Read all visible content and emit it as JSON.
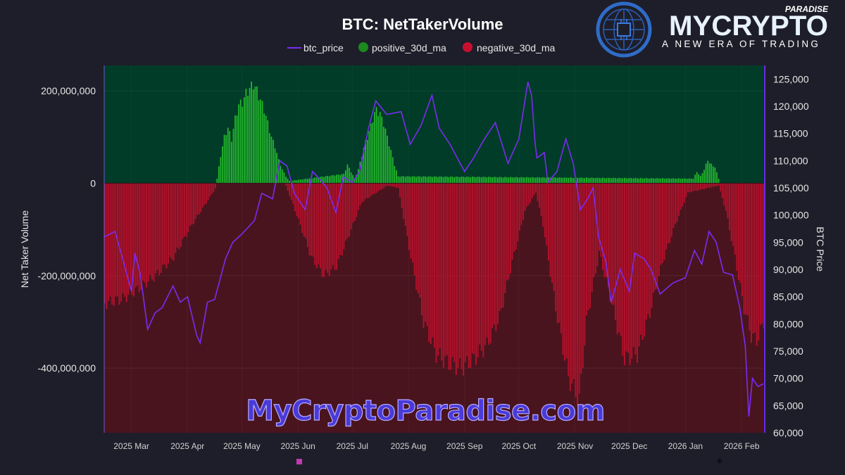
{
  "brand": {
    "name": "MYCRYPTO",
    "sub": "PARADISE",
    "tagline": "A NEW ERA OF TRADING",
    "watermark": "MyCryptoParadise.com"
  },
  "colors": {
    "price": "#7a2cf0",
    "positive": "#2bd42b",
    "negative": "#c8102e",
    "positive_region": "#003c28",
    "negative_region": "#4a141e"
  },
  "chart_data": {
    "type": "bar",
    "title": "BTC: NetTakerVolume",
    "ylabel": "Net Taker Volume",
    "y2label": "BTC Price",
    "legend": [
      "btc_price",
      "positive_30d_ma",
      "negative_30d_ma"
    ],
    "legend_position": "top-center",
    "ylim": [
      -540000000,
      255000000
    ],
    "y2lim": [
      60000,
      127500
    ],
    "yticks": [
      200000000,
      0,
      -200000000,
      -400000000
    ],
    "ytick_labels": [
      "200,000,000",
      "0",
      "-200,000,000",
      "-400,000,000"
    ],
    "y2ticks": [
      125000,
      120000,
      115000,
      110000,
      105000,
      100000,
      95000,
      90000,
      85000,
      80000,
      75000,
      70000,
      65000,
      60000
    ],
    "y2tick_labels": [
      "125,000",
      "120,000",
      "115,000",
      "110,000",
      "105,000",
      "100,000",
      "95,000",
      "90,000",
      "85,000",
      "80,000",
      "75,000",
      "70,000",
      "65,000",
      "60,000"
    ],
    "x_range": [
      "2025-02-14",
      "2026-02-13"
    ],
    "xtick_labels": [
      "2025 Mar",
      "2025 Apr",
      "2025 May",
      "2025 Jun",
      "2025 Jul",
      "2025 Aug",
      "2025 Sep",
      "2025 Oct",
      "2025 Nov",
      "2025 Dec",
      "2026 Jan",
      "2026 Feb"
    ],
    "xtick_dates": [
      "2025-03-01",
      "2025-04-01",
      "2025-05-01",
      "2025-06-01",
      "2025-07-01",
      "2025-08-01",
      "2025-09-01",
      "2025-10-01",
      "2025-11-01",
      "2025-12-01",
      "2026-01-01",
      "2026-02-01"
    ],
    "series": [
      {
        "name": "btc_price",
        "type": "line",
        "axis": "right",
        "points": [
          [
            "2025-02-14",
            96000
          ],
          [
            "2025-02-20",
            97000
          ],
          [
            "2025-02-25",
            91000
          ],
          [
            "2025-03-01",
            86000
          ],
          [
            "2025-03-03",
            93000
          ],
          [
            "2025-03-06",
            89000
          ],
          [
            "2025-03-10",
            79000
          ],
          [
            "2025-03-14",
            82000
          ],
          [
            "2025-03-18",
            83000
          ],
          [
            "2025-03-24",
            87000
          ],
          [
            "2025-03-28",
            84000
          ],
          [
            "2025-04-01",
            85000
          ],
          [
            "2025-04-06",
            78000
          ],
          [
            "2025-04-08",
            76500
          ],
          [
            "2025-04-12",
            84000
          ],
          [
            "2025-04-16",
            84500
          ],
          [
            "2025-04-22",
            92000
          ],
          [
            "2025-04-26",
            95000
          ],
          [
            "2025-05-01",
            96500
          ],
          [
            "2025-05-08",
            99000
          ],
          [
            "2025-05-12",
            104000
          ],
          [
            "2025-05-18",
            103000
          ],
          [
            "2025-05-22",
            110000
          ],
          [
            "2025-05-26",
            109000
          ],
          [
            "2025-05-30",
            104000
          ],
          [
            "2025-06-05",
            101000
          ],
          [
            "2025-06-09",
            108000
          ],
          [
            "2025-06-12",
            107000
          ],
          [
            "2025-06-17",
            105000
          ],
          [
            "2025-06-22",
            100500
          ],
          [
            "2025-06-26",
            107000
          ],
          [
            "2025-07-01",
            106000
          ],
          [
            "2025-07-05",
            108000
          ],
          [
            "2025-07-10",
            116000
          ],
          [
            "2025-07-14",
            121000
          ],
          [
            "2025-07-20",
            118500
          ],
          [
            "2025-07-28",
            119000
          ],
          [
            "2025-08-02",
            113000
          ],
          [
            "2025-08-08",
            116500
          ],
          [
            "2025-08-14",
            122000
          ],
          [
            "2025-08-18",
            116000
          ],
          [
            "2025-08-24",
            113000
          ],
          [
            "2025-09-01",
            108000
          ],
          [
            "2025-09-06",
            110500
          ],
          [
            "2025-09-12",
            114000
          ],
          [
            "2025-09-18",
            117000
          ],
          [
            "2025-09-25",
            109500
          ],
          [
            "2025-10-01",
            114000
          ],
          [
            "2025-10-06",
            124500
          ],
          [
            "2025-10-08",
            122000
          ],
          [
            "2025-10-10",
            113000
          ],
          [
            "2025-10-11",
            110500
          ],
          [
            "2025-10-15",
            111500
          ],
          [
            "2025-10-17",
            106000
          ],
          [
            "2025-10-22",
            108000
          ],
          [
            "2025-10-27",
            114000
          ],
          [
            "2025-10-31",
            109500
          ],
          [
            "2025-11-04",
            101000
          ],
          [
            "2025-11-08",
            103000
          ],
          [
            "2025-11-11",
            105000
          ],
          [
            "2025-11-14",
            96000
          ],
          [
            "2025-11-18",
            91500
          ],
          [
            "2025-11-21",
            84000
          ],
          [
            "2025-11-26",
            90000
          ],
          [
            "2025-12-01",
            86000
          ],
          [
            "2025-12-04",
            93000
          ],
          [
            "2025-12-09",
            92000
          ],
          [
            "2025-12-13",
            90000
          ],
          [
            "2025-12-18",
            85500
          ],
          [
            "2025-12-25",
            87500
          ],
          [
            "2026-01-01",
            88500
          ],
          [
            "2026-01-06",
            93500
          ],
          [
            "2026-01-10",
            91000
          ],
          [
            "2026-01-14",
            97000
          ],
          [
            "2026-01-18",
            95000
          ],
          [
            "2026-01-22",
            89500
          ],
          [
            "2026-01-27",
            89000
          ],
          [
            "2026-01-31",
            83000
          ],
          [
            "2026-02-03",
            76000
          ],
          [
            "2026-02-05",
            63000
          ],
          [
            "2026-02-07",
            70000
          ],
          [
            "2026-02-10",
            68500
          ],
          [
            "2026-02-13",
            69000
          ]
        ]
      },
      {
        "name": "positive_30d_ma",
        "type": "bar",
        "axis": "left",
        "points": [
          [
            "2025-04-17",
            10000000
          ],
          [
            "2025-04-19",
            60000000
          ],
          [
            "2025-04-21",
            100000000
          ],
          [
            "2025-04-23",
            120000000
          ],
          [
            "2025-04-25",
            95000000
          ],
          [
            "2025-04-27",
            140000000
          ],
          [
            "2025-04-29",
            170000000
          ],
          [
            "2025-05-01",
            175000000
          ],
          [
            "2025-05-03",
            195000000
          ],
          [
            "2025-05-05",
            205000000
          ],
          [
            "2025-05-07",
            215000000
          ],
          [
            "2025-05-09",
            200000000
          ],
          [
            "2025-05-11",
            180000000
          ],
          [
            "2025-05-13",
            160000000
          ],
          [
            "2025-05-15",
            130000000
          ],
          [
            "2025-05-17",
            100000000
          ],
          [
            "2025-05-19",
            80000000
          ],
          [
            "2025-05-21",
            50000000
          ],
          [
            "2025-05-23",
            30000000
          ],
          [
            "2025-05-25",
            15000000
          ],
          [
            "2025-05-27",
            5000000
          ],
          [
            "2025-06-26",
            20000000
          ],
          [
            "2025-06-28",
            40000000
          ],
          [
            "2025-06-30",
            25000000
          ],
          [
            "2025-07-02",
            10000000
          ],
          [
            "2025-07-04",
            30000000
          ],
          [
            "2025-07-06",
            60000000
          ],
          [
            "2025-07-08",
            90000000
          ],
          [
            "2025-07-10",
            110000000
          ],
          [
            "2025-07-12",
            140000000
          ],
          [
            "2025-07-14",
            160000000
          ],
          [
            "2025-07-16",
            150000000
          ],
          [
            "2025-07-18",
            130000000
          ],
          [
            "2025-07-20",
            100000000
          ],
          [
            "2025-07-22",
            70000000
          ],
          [
            "2025-07-24",
            40000000
          ],
          [
            "2025-07-26",
            15000000
          ],
          [
            "2026-01-05",
            10000000
          ],
          [
            "2026-01-07",
            25000000
          ],
          [
            "2026-01-09",
            15000000
          ],
          [
            "2026-01-11",
            30000000
          ],
          [
            "2026-01-13",
            50000000
          ],
          [
            "2026-01-15",
            40000000
          ],
          [
            "2026-01-17",
            35000000
          ],
          [
            "2026-01-19",
            10000000
          ]
        ]
      },
      {
        "name": "negative_30d_ma",
        "type": "bar",
        "axis": "left",
        "points": [
          [
            "2025-02-14",
            -260000000
          ],
          [
            "2025-02-24",
            -250000000
          ],
          [
            "2025-03-04",
            -230000000
          ],
          [
            "2025-03-14",
            -200000000
          ],
          [
            "2025-03-24",
            -160000000
          ],
          [
            "2025-04-03",
            -90000000
          ],
          [
            "2025-04-13",
            -30000000
          ],
          [
            "2025-04-17",
            -5000000
          ],
          [
            "2025-05-25",
            -5000000
          ],
          [
            "2025-06-01",
            -80000000
          ],
          [
            "2025-06-08",
            -160000000
          ],
          [
            "2025-06-15",
            -200000000
          ],
          [
            "2025-06-22",
            -180000000
          ],
          [
            "2025-06-29",
            -110000000
          ],
          [
            "2025-07-06",
            -40000000
          ],
          [
            "2025-07-20",
            -5000000
          ],
          [
            "2025-07-26",
            -10000000
          ],
          [
            "2025-08-02",
            -160000000
          ],
          [
            "2025-08-09",
            -300000000
          ],
          [
            "2025-08-16",
            -370000000
          ],
          [
            "2025-08-23",
            -390000000
          ],
          [
            "2025-08-30",
            -400000000
          ],
          [
            "2025-09-06",
            -380000000
          ],
          [
            "2025-09-13",
            -350000000
          ],
          [
            "2025-09-20",
            -290000000
          ],
          [
            "2025-09-27",
            -170000000
          ],
          [
            "2025-10-04",
            -60000000
          ],
          [
            "2025-10-10",
            -20000000
          ],
          [
            "2025-10-14",
            -90000000
          ],
          [
            "2025-10-21",
            -270000000
          ],
          [
            "2025-10-28",
            -420000000
          ],
          [
            "2025-11-03",
            -470000000
          ],
          [
            "2025-11-07",
            -300000000
          ],
          [
            "2025-11-14",
            -150000000
          ],
          [
            "2025-11-21",
            -260000000
          ],
          [
            "2025-11-28",
            -380000000
          ],
          [
            "2025-12-05",
            -370000000
          ],
          [
            "2025-12-12",
            -280000000
          ],
          [
            "2025-12-19",
            -170000000
          ],
          [
            "2025-12-26",
            -90000000
          ],
          [
            "2026-01-02",
            -20000000
          ],
          [
            "2026-01-19",
            -5000000
          ],
          [
            "2026-01-23",
            -60000000
          ],
          [
            "2026-01-28",
            -160000000
          ],
          [
            "2026-02-02",
            -270000000
          ],
          [
            "2026-02-06",
            -330000000
          ],
          [
            "2026-02-09",
            -340000000
          ],
          [
            "2026-02-13",
            -300000000
          ]
        ]
      }
    ]
  }
}
